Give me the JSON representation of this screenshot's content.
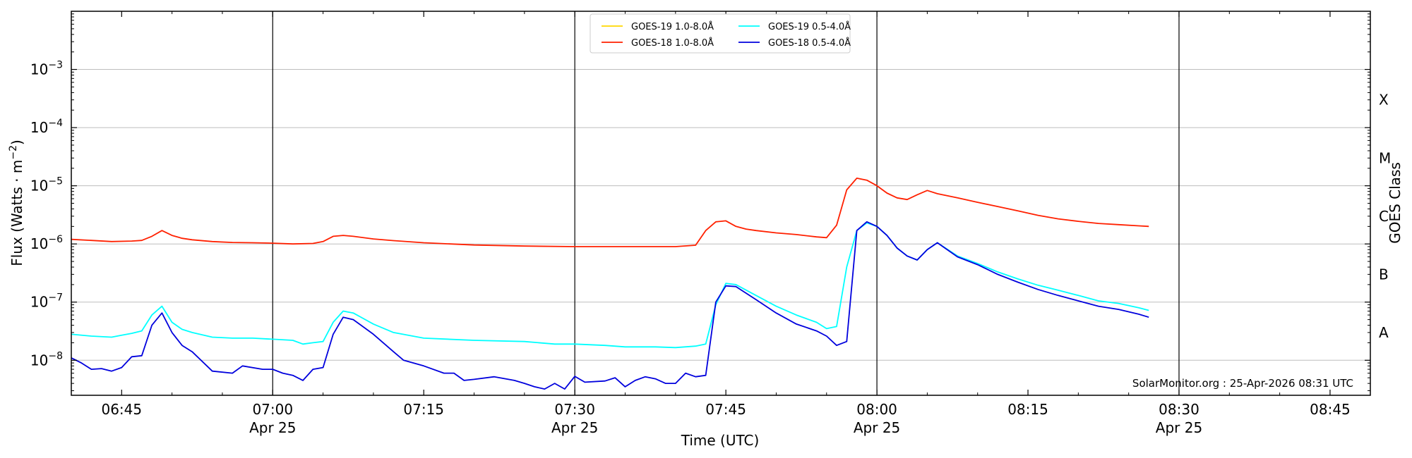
{
  "chart_data": {
    "type": "line",
    "xlabel": "Time (UTC)",
    "ylabel": "Flux (Watts · m",
    "ylabel_superscript": "−2",
    "ylabel_close": ")",
    "y2label": "GOES Class",
    "y_scale": "log",
    "ylim": [
      2.5e-09,
      0.01
    ],
    "xlim": [
      "06:40",
      "08:49"
    ],
    "y_ticks": [
      {
        "value": 1e-08,
        "base": "10",
        "exp": "−8"
      },
      {
        "value": 1e-07,
        "base": "10",
        "exp": "−7"
      },
      {
        "value": 1e-06,
        "base": "10",
        "exp": "−6"
      },
      {
        "value": 1e-05,
        "base": "10",
        "exp": "−5"
      },
      {
        "value": 0.0001,
        "base": "10",
        "exp": "−4"
      },
      {
        "value": 0.001,
        "base": "10",
        "exp": "−3"
      }
    ],
    "x_ticks": [
      {
        "time": "06:45",
        "label": "06:45",
        "sub": ""
      },
      {
        "time": "07:00",
        "label": "07:00",
        "sub": "Apr 25"
      },
      {
        "time": "07:15",
        "label": "07:15",
        "sub": ""
      },
      {
        "time": "07:30",
        "label": "07:30",
        "sub": "Apr 25"
      },
      {
        "time": "07:45",
        "label": "07:45",
        "sub": ""
      },
      {
        "time": "08:00",
        "label": "08:00",
        "sub": "Apr 25"
      },
      {
        "time": "08:15",
        "label": "08:15",
        "sub": ""
      },
      {
        "time": "08:30",
        "label": "08:30",
        "sub": "Apr 25"
      },
      {
        "time": "08:45",
        "label": "08:45",
        "sub": ""
      }
    ],
    "vertical_lines": [
      "07:00",
      "07:30",
      "08:00",
      "08:30"
    ],
    "goes_classes": [
      {
        "label": "A",
        "value": 3e-08
      },
      {
        "label": "B",
        "value": 3e-07
      },
      {
        "label": "C",
        "value": 3e-06
      },
      {
        "label": "M",
        "value": 3e-05
      },
      {
        "label": "X",
        "value": 0.0003
      }
    ],
    "grid": "horizontal at decades",
    "legend_position": "top-center",
    "legend": [
      {
        "name": "GOES-19 1.0-8.0Å",
        "color": "#ffd700"
      },
      {
        "name": "GOES-19 0.5-4.0Å",
        "color": "#00ffff"
      },
      {
        "name": "GOES-18 1.0-8.0Å",
        "color": "#ff2000"
      },
      {
        "name": "GOES-18 0.5-4.0Å",
        "color": "#0000dd"
      }
    ],
    "series": [
      {
        "name": "GOES-18 1.0-8.0Å",
        "color": "#ff2000",
        "x": [
          "06:40",
          "06:42",
          "06:44",
          "06:46",
          "06:47",
          "06:48",
          "06:49",
          "06:50",
          "06:51",
          "06:52",
          "06:54",
          "06:56",
          "06:58",
          "07:00",
          "07:02",
          "07:04",
          "07:05",
          "07:06",
          "07:07",
          "07:08",
          "07:10",
          "07:12",
          "07:15",
          "07:20",
          "07:25",
          "07:30",
          "07:35",
          "07:40",
          "07:42",
          "07:43",
          "07:44",
          "07:45",
          "07:46",
          "07:47",
          "07:48",
          "07:50",
          "07:52",
          "07:54",
          "07:55",
          "07:56",
          "07:57",
          "07:58",
          "07:59",
          "08:00",
          "08:01",
          "08:02",
          "08:03",
          "08:04",
          "08:05",
          "08:06",
          "08:08",
          "08:10",
          "08:12",
          "08:14",
          "08:16",
          "08:18",
          "08:20",
          "08:22",
          "08:24",
          "08:26",
          "08:27"
        ],
        "values": [
          1.2e-06,
          1.15e-06,
          1.1e-06,
          1.12e-06,
          1.15e-06,
          1.35e-06,
          1.7e-06,
          1.4e-06,
          1.25e-06,
          1.18e-06,
          1.1e-06,
          1.06e-06,
          1.05e-06,
          1.03e-06,
          1e-06,
          1.02e-06,
          1.1e-06,
          1.35e-06,
          1.4e-06,
          1.35e-06,
          1.22e-06,
          1.14e-06,
          1.05e-06,
          9.6e-07,
          9.2e-07,
          9e-07,
          9e-07,
          9e-07,
          9.5e-07,
          1.7e-06,
          2.4e-06,
          2.5e-06,
          2e-06,
          1.8e-06,
          1.7e-06,
          1.55e-06,
          1.45e-06,
          1.32e-06,
          1.28e-06,
          2.1e-06,
          8.5e-06,
          1.35e-05,
          1.25e-05,
          1e-05,
          7.5e-06,
          6.2e-06,
          5.8e-06,
          7e-06,
          8.3e-06,
          7.3e-06,
          6.2e-06,
          5.2e-06,
          4.4e-06,
          3.7e-06,
          3.1e-06,
          2.7e-06,
          2.45e-06,
          2.25e-06,
          2.15e-06,
          2.05e-06,
          2e-06
        ]
      },
      {
        "name": "GOES-19 0.5-4.0Å",
        "color": "#00ffff",
        "x": [
          "06:40",
          "06:42",
          "06:44",
          "06:45",
          "06:46",
          "06:47",
          "06:48",
          "06:49",
          "06:50",
          "06:51",
          "06:52",
          "06:54",
          "06:56",
          "06:58",
          "07:00",
          "07:02",
          "07:03",
          "07:04",
          "07:05",
          "07:06",
          "07:07",
          "07:08",
          "07:10",
          "07:12",
          "07:15",
          "07:20",
          "07:25",
          "07:28",
          "07:30",
          "07:33",
          "07:35",
          "07:38",
          "07:40",
          "07:42",
          "07:43",
          "07:44",
          "07:45",
          "07:46",
          "07:48",
          "07:50",
          "07:52",
          "07:54",
          "07:55",
          "07:56",
          "07:57",
          "07:58",
          "07:59",
          "08:00",
          "08:01",
          "08:02",
          "08:03",
          "08:04",
          "08:05",
          "08:06",
          "08:08",
          "08:10",
          "08:12",
          "08:14",
          "08:16",
          "08:18",
          "08:20",
          "08:22",
          "08:24",
          "08:26",
          "08:27"
        ],
        "values": [
          2.8e-08,
          2.6e-08,
          2.5e-08,
          2.7e-08,
          2.9e-08,
          3.2e-08,
          6e-08,
          8.5e-08,
          4.5e-08,
          3.4e-08,
          3e-08,
          2.5e-08,
          2.4e-08,
          2.4e-08,
          2.3e-08,
          2.2e-08,
          1.9e-08,
          2e-08,
          2.1e-08,
          4.5e-08,
          7e-08,
          6.5e-08,
          4.2e-08,
          3e-08,
          2.4e-08,
          2.2e-08,
          2.1e-08,
          1.9e-08,
          1.9e-08,
          1.8e-08,
          1.7e-08,
          1.7e-08,
          1.65e-08,
          1.75e-08,
          1.9e-08,
          9e-08,
          2.1e-07,
          2e-07,
          1.3e-07,
          8.5e-08,
          6e-08,
          4.5e-08,
          3.5e-08,
          3.8e-08,
          4e-07,
          1.7e-06,
          2.3e-06,
          2e-06,
          1.4e-06,
          8.5e-07,
          6.2e-07,
          5.3e-07,
          8e-07,
          1.05e-06,
          6.2e-07,
          4.6e-07,
          3.3e-07,
          2.5e-07,
          1.95e-07,
          1.6e-07,
          1.3e-07,
          1.05e-07,
          9.5e-08,
          8e-08,
          7.2e-08
        ]
      },
      {
        "name": "GOES-18 0.5-4.0Å",
        "color": "#0000dd",
        "x": [
          "06:40",
          "06:41",
          "06:42",
          "06:43",
          "06:44",
          "06:45",
          "06:46",
          "06:47",
          "06:48",
          "06:49",
          "06:50",
          "06:51",
          "06:52",
          "06:54",
          "06:56",
          "06:57",
          "06:59",
          "07:00",
          "07:01",
          "07:02",
          "07:03",
          "07:04",
          "07:05",
          "07:06",
          "07:07",
          "07:08",
          "07:10",
          "07:12",
          "07:13",
          "07:15",
          "07:17",
          "07:18",
          "07:19",
          "07:20",
          "07:22",
          "07:24",
          "07:25",
          "07:26",
          "07:27",
          "07:28",
          "07:29",
          "07:30",
          "07:31",
          "07:33",
          "07:34",
          "07:35",
          "07:36",
          "07:37",
          "07:38",
          "07:39",
          "07:40",
          "07:41",
          "07:42",
          "07:43",
          "07:44",
          "07:45",
          "07:46",
          "07:48",
          "07:50",
          "07:52",
          "07:54",
          "07:55",
          "07:56",
          "07:57",
          "07:58",
          "07:59",
          "08:00",
          "08:01",
          "08:02",
          "08:03",
          "08:04",
          "08:05",
          "08:06",
          "08:08",
          "08:10",
          "08:12",
          "08:14",
          "08:16",
          "08:18",
          "08:20",
          "08:22",
          "08:24",
          "08:26",
          "08:27"
        ],
        "values": [
          1.1e-08,
          9e-09,
          7e-09,
          7.2e-09,
          6.5e-09,
          7.5e-09,
          1.15e-08,
          1.2e-08,
          4e-08,
          6.5e-08,
          3e-08,
          1.8e-08,
          1.4e-08,
          6.5e-09,
          6e-09,
          8e-09,
          7e-09,
          7e-09,
          6e-09,
          5.5e-09,
          4.5e-09,
          7e-09,
          7.5e-09,
          2.8e-08,
          5.5e-08,
          5e-08,
          2.8e-08,
          1.4e-08,
          1e-08,
          8e-09,
          6e-09,
          6e-09,
          4.5e-09,
          4.7e-09,
          5.2e-09,
          4.5e-09,
          4e-09,
          3.5e-09,
          3.2e-09,
          4e-09,
          3.2e-09,
          5.3e-09,
          4.2e-09,
          4.4e-09,
          5e-09,
          3.5e-09,
          4.5e-09,
          5.2e-09,
          4.8e-09,
          4e-09,
          4e-09,
          6e-09,
          5.2e-09,
          5.5e-09,
          1e-07,
          1.9e-07,
          1.85e-07,
          1.1e-07,
          6.5e-08,
          4.2e-08,
          3.2e-08,
          2.6e-08,
          1.8e-08,
          2.1e-08,
          1.7e-06,
          2.4e-06,
          2e-06,
          1.4e-06,
          8.5e-07,
          6.2e-07,
          5.3e-07,
          8e-07,
          1.05e-06,
          6e-07,
          4.4e-07,
          3e-07,
          2.2e-07,
          1.65e-07,
          1.3e-07,
          1.05e-07,
          8.5e-08,
          7.5e-08,
          6.2e-08,
          5.5e-08
        ]
      }
    ],
    "watermark": "SolarMonitor.org : 25-Apr-2026 08:31 UTC"
  }
}
